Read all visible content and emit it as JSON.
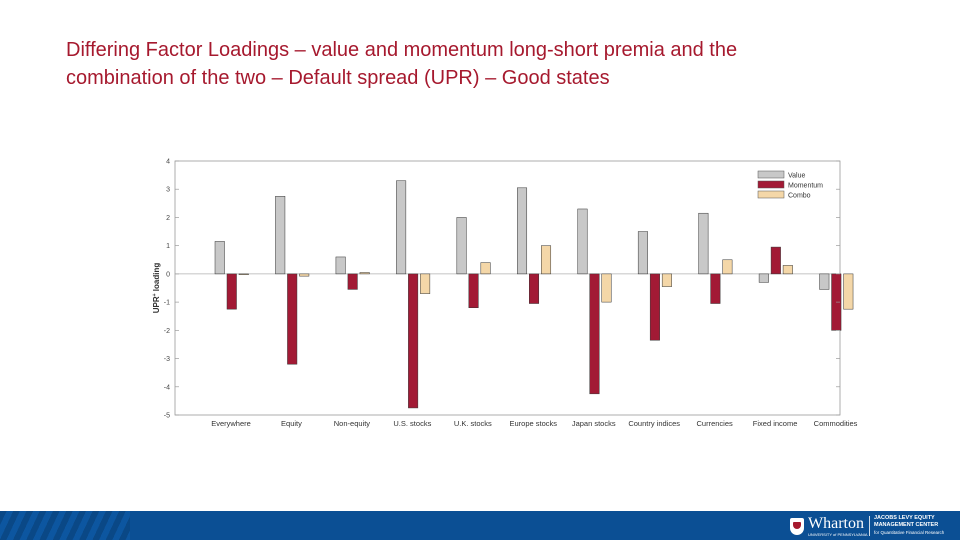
{
  "title": {
    "line1": "Differing Factor Loadings – value and momentum long-short premia and the",
    "line2": "combination of the two – Default spread (UPR) – Good states"
  },
  "chart_data": {
    "type": "bar",
    "title": "",
    "ylabel": "UPR",
    "ylabel_superscript": "+",
    "ylabel_suffix": "loading",
    "xlabel": "",
    "ylim": [
      -5,
      4
    ],
    "yticks": [
      4,
      3,
      2,
      1,
      0,
      -1,
      -2,
      -3,
      -4,
      -5
    ],
    "ytick_labels": [
      "4",
      "3",
      "2",
      "1",
      "0",
      "-1",
      "-2",
      "-3",
      "-4",
      "-5"
    ],
    "grid": false,
    "legend_position": "top-right",
    "categories": [
      "Everywhere",
      "Equity",
      "Non-equity",
      "U.S. stocks",
      "U.K. stocks",
      "Europe stocks",
      "Japan stocks",
      "Country indices",
      "Currencies",
      "Fixed income",
      "Commodities"
    ],
    "series": [
      {
        "name": "Value",
        "color": "#c8c8c8",
        "values": [
          1.15,
          2.75,
          0.6,
          3.3,
          2.0,
          3.05,
          2.3,
          1.5,
          2.15,
          -0.3,
          -0.55
        ]
      },
      {
        "name": "Momentum",
        "color": "#a21a35",
        "values": [
          -1.25,
          -3.2,
          -0.55,
          -4.75,
          -1.2,
          -1.05,
          -4.25,
          -2.35,
          -1.05,
          0.95,
          -2.0
        ]
      },
      {
        "name": "Combo",
        "color": "#f4d7a8",
        "values": [
          -0.02,
          -0.08,
          0.05,
          -0.7,
          0.4,
          1.0,
          -1.0,
          -0.45,
          0.5,
          0.3,
          -1.25
        ]
      }
    ]
  },
  "footer": {
    "logo_text": "Wharton",
    "logo_subtext": "UNIVERSITY of PENNSYLVANIA",
    "center_line1": "JACOBS LEVY EQUITY",
    "center_line2": "MANAGEMENT CENTER",
    "center_line3": "for Quantitative Financial Research",
    "bar_color": "#0b4f94"
  }
}
